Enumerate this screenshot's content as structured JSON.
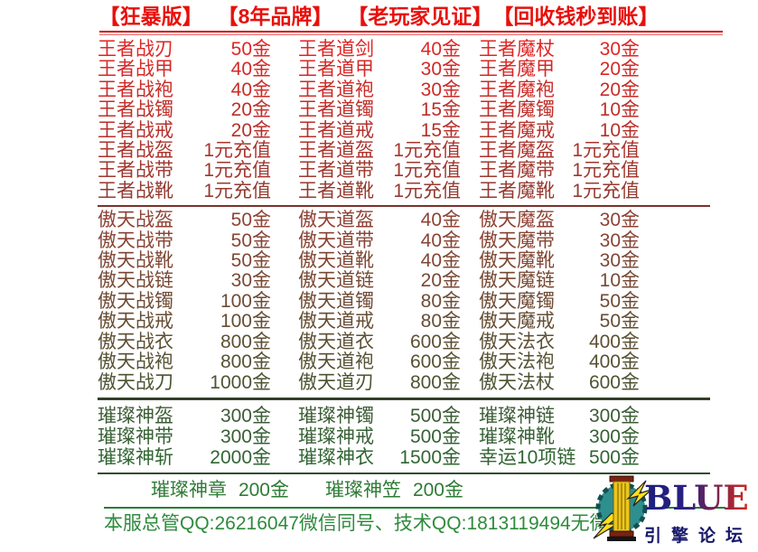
{
  "page": {
    "background": "#ffffff"
  },
  "header": {
    "color": "#e8100c",
    "badges": [
      "【狂暴版】",
      "【8年品牌】",
      "【老玩家见证】",
      "【回收钱秒到账】"
    ]
  },
  "sections": [
    {
      "color_start": "#e02524",
      "color_end": "#943a30",
      "divider_color": "#7a332b",
      "rows": [
        {
          "cells": [
            {
              "item": "王者战刃",
              "price": "50金"
            },
            {
              "item": "王者道剑",
              "price": "40金"
            },
            {
              "item": "王者魔杖",
              "price": "30金"
            }
          ]
        },
        {
          "cells": [
            {
              "item": "王者战甲",
              "price": "40金"
            },
            {
              "item": "王者道甲",
              "price": "30金"
            },
            {
              "item": "王者魔甲",
              "price": "20金"
            }
          ]
        },
        {
          "cells": [
            {
              "item": "王者战袍",
              "price": "40金"
            },
            {
              "item": "王者道袍",
              "price": "30金"
            },
            {
              "item": "王者魔袍",
              "price": "20金"
            }
          ]
        },
        {
          "cells": [
            {
              "item": "王者战镯",
              "price": "20金"
            },
            {
              "item": "王者道镯",
              "price": "15金"
            },
            {
              "item": "王者魔镯",
              "price": "10金"
            }
          ]
        },
        {
          "cells": [
            {
              "item": "王者战戒",
              "price": "20金"
            },
            {
              "item": "王者道戒",
              "price": "15金"
            },
            {
              "item": "王者魔戒",
              "price": "10金"
            }
          ]
        },
        {
          "cells": [
            {
              "item": "王者战盔",
              "price": "1元充值"
            },
            {
              "item": "王者道盔",
              "price": "1元充值"
            },
            {
              "item": "王者魔盔",
              "price": "1元充值"
            }
          ]
        },
        {
          "cells": [
            {
              "item": "王者战带",
              "price": "1元充值"
            },
            {
              "item": "王者道带",
              "price": "1元充值"
            },
            {
              "item": "王者魔带",
              "price": "1元充值"
            }
          ]
        },
        {
          "cells": [
            {
              "item": "王者战靴",
              "price": "1元充值"
            },
            {
              "item": "王者道靴",
              "price": "1元充值"
            },
            {
              "item": "王者魔靴",
              "price": "1元充值"
            }
          ]
        }
      ]
    },
    {
      "color_start": "#8f4234",
      "color_end": "#4e5433",
      "divider_color": "#323f2b",
      "rows": [
        {
          "cells": [
            {
              "item": "傲天战盔",
              "price": "50金"
            },
            {
              "item": "傲天道盔",
              "price": "40金"
            },
            {
              "item": "傲天魔盔",
              "price": "30金"
            }
          ]
        },
        {
          "cells": [
            {
              "item": "傲天战带",
              "price": "50金"
            },
            {
              "item": "傲天道带",
              "price": "40金"
            },
            {
              "item": "傲天魔带",
              "price": "30金"
            }
          ]
        },
        {
          "cells": [
            {
              "item": "傲天战靴",
              "price": "50金"
            },
            {
              "item": "傲天道靴",
              "price": "40金"
            },
            {
              "item": "傲天魔靴",
              "price": "30金"
            }
          ]
        },
        {
          "cells": [
            {
              "item": "傲天战链",
              "price": "30金"
            },
            {
              "item": "傲天道链",
              "price": "20金"
            },
            {
              "item": "傲天魔链",
              "price": "10金"
            }
          ]
        },
        {
          "cells": [
            {
              "item": "傲天战镯",
              "price": "100金"
            },
            {
              "item": "傲天道镯",
              "price": "80金"
            },
            {
              "item": "傲天魔镯",
              "price": "50金"
            }
          ]
        },
        {
          "cells": [
            {
              "item": "傲天战戒",
              "price": "100金"
            },
            {
              "item": "傲天道戒",
              "price": "80金"
            },
            {
              "item": "傲天魔戒",
              "price": "50金"
            }
          ]
        },
        {
          "cells": [
            {
              "item": "傲天战衣",
              "price": "800金"
            },
            {
              "item": "傲天道衣",
              "price": "600金"
            },
            {
              "item": "傲天法衣",
              "price": "400金"
            }
          ]
        },
        {
          "cells": [
            {
              "item": "傲天战袍",
              "price": "800金"
            },
            {
              "item": "傲天道袍",
              "price": "600金"
            },
            {
              "item": "傲天法袍",
              "price": "400金"
            }
          ]
        },
        {
          "cells": [
            {
              "item": "傲天战刀",
              "price": "1000金"
            },
            {
              "item": "傲天道刃",
              "price": "800金"
            },
            {
              "item": "傲天法杖",
              "price": "600金"
            }
          ]
        }
      ]
    },
    {
      "color_start": "#3c5c36",
      "color_end": "#316533",
      "divider_color": "#2e4f2e",
      "rows": [
        {
          "cells": [
            {
              "item": "璀璨神盔",
              "price": "300金"
            },
            {
              "item": "璀璨神镯",
              "price": "500金"
            },
            {
              "item": "璀璨神链",
              "price": "300金"
            }
          ]
        },
        {
          "cells": [
            {
              "item": "璀璨神带",
              "price": "300金"
            },
            {
              "item": "璀璨神戒",
              "price": "500金"
            },
            {
              "item": "璀璨神靴",
              "price": "300金"
            }
          ]
        },
        {
          "cells": [
            {
              "item": "璀璨神斩",
              "price": "2000金"
            },
            {
              "item": "璀璨神衣",
              "price": "1500金"
            },
            {
              "item": "幸运10项链",
              "price": "500金"
            }
          ]
        }
      ]
    },
    {
      "color_start": "#2e7c35",
      "color_end": "#2e7c35",
      "divider_color": "#238034",
      "rows": [
        {
          "cells": [
            {
              "item": "璀璨神章",
              "price": "200金"
            },
            {
              "item": "璀璨神笠",
              "price": "200金"
            }
          ]
        }
      ]
    }
  ],
  "footer": {
    "color": "#2e8b3c",
    "text": "本服总管QQ:26216047微信同号、技术QQ:1813119494无微信"
  },
  "watermark": {
    "title": "BLUE",
    "subtitle": "引擎论坛",
    "title_gradient": [
      "#1b1f7e",
      "#cf2a1c"
    ],
    "subtitle_color": "#17176b",
    "gear_color": "#2e8f8f",
    "gear_edge_color": "#134f4f",
    "column_color": "#e9c71f",
    "cap_color": "#7a2212",
    "bolt_color": "#ffe01a"
  }
}
